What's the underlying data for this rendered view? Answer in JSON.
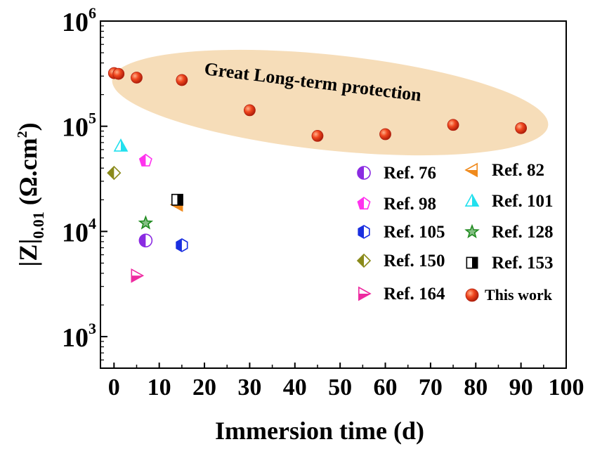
{
  "chart_data": {
    "type": "scatter",
    "title": "",
    "xlabel": "Immersion time (d)",
    "ylabel": {
      "main": "|Z|",
      "sub": "0.01",
      "unit": "(Ω.cm",
      "unit_sup": "2",
      "unit_close": ")"
    },
    "xlim": [
      -3,
      100
    ],
    "ylim_log10": [
      2.7,
      6
    ],
    "x_ticks": [
      0,
      10,
      20,
      30,
      40,
      50,
      60,
      70,
      80,
      90,
      100
    ],
    "y_ticks": [
      {
        "exp": 3,
        "base": "10",
        "sup": "3"
      },
      {
        "exp": 4,
        "base": "10",
        "sup": "4"
      },
      {
        "exp": 5,
        "base": "10",
        "sup": "5"
      },
      {
        "exp": 6,
        "base": "10",
        "sup": "6"
      }
    ],
    "y_scale": "log",
    "annotation": {
      "text": "Great Long-term protection",
      "color": "#2f5fb0",
      "highlight_color": "#f6ddb9"
    },
    "legend_position": "right",
    "series": [
      {
        "name": "Ref. 76",
        "marker": "half-circle",
        "color": "#8a2be2",
        "points": [
          {
            "x": 7,
            "y": 8200
          }
        ]
      },
      {
        "name": "Ref. 82",
        "marker": "triangle-left",
        "color": "#f08a1c",
        "points": [
          {
            "x": 14,
            "y": 18000
          }
        ]
      },
      {
        "name": "Ref. 98",
        "marker": "pentagon",
        "color": "#ff33ee",
        "points": [
          {
            "x": 7,
            "y": 47000
          }
        ]
      },
      {
        "name": "Ref. 101",
        "marker": "triangle-up",
        "color": "#22e0ee",
        "points": [
          {
            "x": 1.5,
            "y": 65000
          }
        ]
      },
      {
        "name": "Ref. 105",
        "marker": "hexagon",
        "color": "#1a2fe0",
        "points": [
          {
            "x": 15,
            "y": 7400
          }
        ]
      },
      {
        "name": "Ref. 128",
        "marker": "star",
        "color": "#1f8a1f",
        "points": [
          {
            "x": 7,
            "y": 12000
          }
        ]
      },
      {
        "name": "Ref. 150",
        "marker": "diamond",
        "color": "#8a8a1a",
        "points": [
          {
            "x": 0,
            "y": 36000
          }
        ]
      },
      {
        "name": "Ref. 153",
        "marker": "square",
        "color": "#000000",
        "points": [
          {
            "x": 14,
            "y": 20000
          }
        ]
      },
      {
        "name": "Ref. 164",
        "marker": "triangle-right",
        "color": "#ee2aa0",
        "points": [
          {
            "x": 5,
            "y": 3800
          }
        ]
      },
      {
        "name": "This work",
        "marker": "sphere",
        "color": "#e8361c",
        "points": [
          {
            "x": 0,
            "y": 320000
          },
          {
            "x": 1,
            "y": 315000
          },
          {
            "x": 5,
            "y": 290000
          },
          {
            "x": 15,
            "y": 275000
          },
          {
            "x": 30,
            "y": 142000
          },
          {
            "x": 45,
            "y": 81000
          },
          {
            "x": 60,
            "y": 84000
          },
          {
            "x": 75,
            "y": 103000
          },
          {
            "x": 90,
            "y": 96000
          }
        ]
      }
    ]
  }
}
